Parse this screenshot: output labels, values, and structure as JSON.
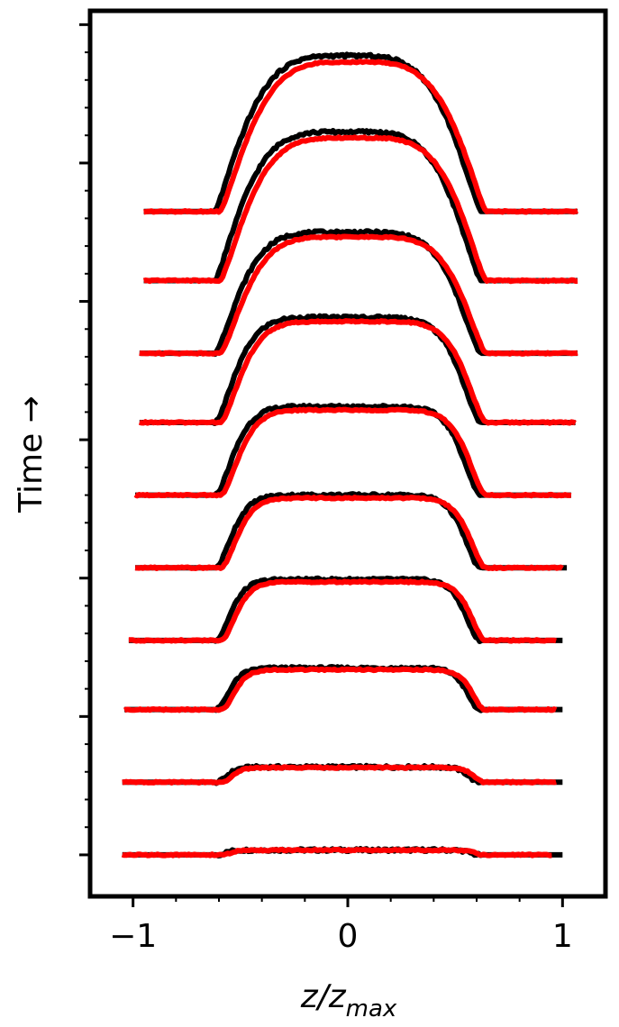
{
  "chart_data": {
    "type": "line",
    "title": "",
    "xlabel_main": "z/z",
    "xlabel_sub": "max",
    "ylabel": "Time →",
    "xlim": [
      -1.2,
      1.2
    ],
    "ylim": [
      -0.6,
      12.2
    ],
    "x_ticks": [
      -1,
      0,
      1
    ],
    "x_tick_labels": [
      "−1",
      "0",
      "1"
    ],
    "x_minor_step": 0.2,
    "y_major_ticks": [
      0,
      2,
      4,
      6,
      8,
      10,
      12
    ],
    "y_minor_step": 0.4,
    "y_tick_labels_shown": false,
    "grid": false,
    "legend": "none",
    "colors": {
      "measured": "#000000",
      "model": "#ff0000"
    },
    "offsets": [
      0,
      1.05,
      2.1,
      3.1,
      4.15,
      5.2,
      6.25,
      7.25,
      8.3,
      9.3
    ],
    "series": [
      {
        "plateau_half_width": 0.62,
        "peak_half_width": 0.4,
        "amplitude": 0.07,
        "x_start": -1.05,
        "x_end": 1.0,
        "red_end": 0.95
      },
      {
        "plateau_half_width": 0.62,
        "peak_half_width": 0.55,
        "amplitude": 0.22,
        "x_start": -1.05,
        "x_end": 1.0,
        "red_end": 0.97
      },
      {
        "plateau_half_width": 0.62,
        "peak_half_width": 0.78,
        "amplitude": 0.6,
        "x_start": -1.04,
        "x_end": 1.0,
        "red_end": 0.97
      },
      {
        "plateau_half_width": 0.62,
        "peak_half_width": 1.0,
        "amplitude": 0.88,
        "x_start": -1.02,
        "x_end": 1.0,
        "red_end": 0.97
      },
      {
        "plateau_half_width": 0.62,
        "peak_half_width": 1.2,
        "amplitude": 1.05,
        "x_start": -0.99,
        "x_end": 1.02,
        "red_end": 1.0
      },
      {
        "plateau_half_width": 0.62,
        "peak_half_width": 1.5,
        "amplitude": 1.28,
        "x_start": -0.99,
        "x_end": 1.04,
        "red_end": 1.04
      },
      {
        "plateau_half_width": 0.62,
        "peak_half_width": 2.0,
        "amplitude": 1.52,
        "x_start": -0.97,
        "x_end": 1.06,
        "red_end": 1.06
      },
      {
        "plateau_half_width": 0.62,
        "peak_half_width": 3.0,
        "amplitude": 1.75,
        "x_start": -0.97,
        "x_end": 1.07,
        "red_end": 1.07
      },
      {
        "plateau_half_width": 0.62,
        "peak_half_width": 4.0,
        "amplitude": 2.15,
        "x_start": -0.95,
        "x_end": 1.07,
        "red_end": 1.07
      },
      {
        "plateau_half_width": 0.62,
        "peak_half_width": 5.0,
        "amplitude": 2.25,
        "x_start": -0.95,
        "x_end": 1.07,
        "red_end": 1.07
      }
    ]
  }
}
